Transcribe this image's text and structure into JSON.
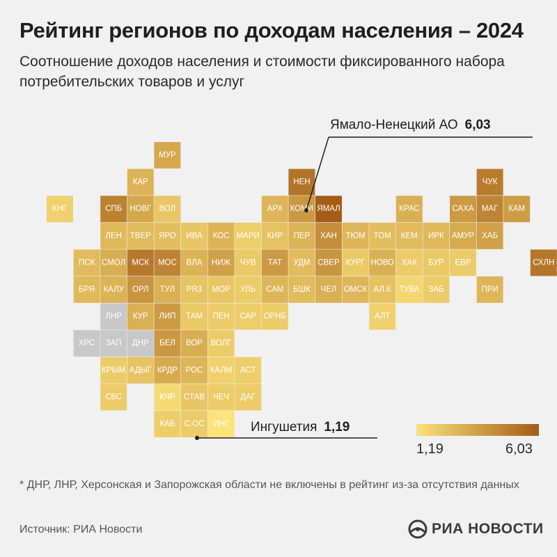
{
  "header": {
    "title": "Рейтинг регионов по доходам населения – 2024",
    "subtitle": "Соотношение доходов населения и стоимости фиксированного набора потребительских товаров и услуг"
  },
  "chart_data": {
    "type": "heatmap",
    "title": "Рейтинг регионов по доходам населения – 2024",
    "subtitle": "Соотношение доходов населения и стоимости фиксированного набора потребительских товаров и услуг",
    "color_scale": {
      "min": 1.19,
      "max": 6.03,
      "min_label": "1,19",
      "max_label": "6,03",
      "min_color": "#fbe27a",
      "max_color": "#a35d16",
      "no_data_color": "#c8c8c8"
    },
    "cells": [
      {
        "label": "МУР",
        "col": 4,
        "row": 0,
        "value": 3.3
      },
      {
        "label": "КАР",
        "col": 3,
        "row": 1,
        "value": 2.9
      },
      {
        "label": "НЕН",
        "col": 9,
        "row": 1,
        "value": 5.2
      },
      {
        "label": "ЧУК",
        "col": 16,
        "row": 1,
        "value": 4.9
      },
      {
        "label": "КНГ",
        "col": 0,
        "row": 2,
        "value": 1.8
      },
      {
        "label": "СПБ",
        "col": 2,
        "row": 2,
        "value": 4.7
      },
      {
        "label": "НОВГ",
        "col": 3,
        "row": 2,
        "value": 3.3
      },
      {
        "label": "ВОЛ",
        "col": 4,
        "row": 2,
        "value": 2.2
      },
      {
        "label": "АРХ",
        "col": 8,
        "row": 2,
        "value": 2.8
      },
      {
        "label": "КОМИ",
        "col": 9,
        "row": 2,
        "value": 3.9
      },
      {
        "label": "ЯМАЛ",
        "col": 10,
        "row": 2,
        "value": 6.03
      },
      {
        "label": "КРАС",
        "col": 13,
        "row": 2,
        "value": 3.0
      },
      {
        "label": "САХА",
        "col": 15,
        "row": 2,
        "value": 3.8
      },
      {
        "label": "МАГ",
        "col": 16,
        "row": 2,
        "value": 4.6
      },
      {
        "label": "КАМ",
        "col": 17,
        "row": 2,
        "value": 3.7
      },
      {
        "label": "ЛЕН",
        "col": 2,
        "row": 3,
        "value": 2.7
      },
      {
        "label": "ТВЕР",
        "col": 3,
        "row": 3,
        "value": 2.6
      },
      {
        "label": "ЯРО",
        "col": 4,
        "row": 3,
        "value": 2.5
      },
      {
        "label": "ИВА",
        "col": 5,
        "row": 3,
        "value": 2.2
      },
      {
        "label": "КОС",
        "col": 6,
        "row": 3,
        "value": 2.9
      },
      {
        "label": "МАРИ",
        "col": 7,
        "row": 3,
        "value": 1.9
      },
      {
        "label": "КИР",
        "col": 8,
        "row": 3,
        "value": 2.4
      },
      {
        "label": "ПЕР",
        "col": 9,
        "row": 3,
        "value": 2.9
      },
      {
        "label": "ХАН",
        "col": 10,
        "row": 3,
        "value": 4.2
      },
      {
        "label": "ТЮМ",
        "col": 11,
        "row": 3,
        "value": 2.8
      },
      {
        "label": "ТОМ",
        "col": 12,
        "row": 3,
        "value": 2.5
      },
      {
        "label": "КЕМ",
        "col": 13,
        "row": 3,
        "value": 2.6
      },
      {
        "label": "ИРК",
        "col": 14,
        "row": 3,
        "value": 2.7
      },
      {
        "label": "АМУР",
        "col": 15,
        "row": 3,
        "value": 3.2
      },
      {
        "label": "ХАБ",
        "col": 16,
        "row": 3,
        "value": 3.6
      },
      {
        "label": "ПСК",
        "col": 1,
        "row": 4,
        "value": 2.6
      },
      {
        "label": "СМОЛ",
        "col": 2,
        "row": 4,
        "value": 3.1
      },
      {
        "label": "МСК",
        "col": 3,
        "row": 4,
        "value": 5.0
      },
      {
        "label": "МОС",
        "col": 4,
        "row": 4,
        "value": 4.6
      },
      {
        "label": "ВЛА",
        "col": 5,
        "row": 4,
        "value": 2.9
      },
      {
        "label": "НИЖ",
        "col": 6,
        "row": 4,
        "value": 3.6
      },
      {
        "label": "ЧУВ",
        "col": 7,
        "row": 4,
        "value": 2.1
      },
      {
        "label": "ТАТ",
        "col": 8,
        "row": 4,
        "value": 3.8
      },
      {
        "label": "УДМ",
        "col": 9,
        "row": 4,
        "value": 2.6
      },
      {
        "label": "СВЕР",
        "col": 10,
        "row": 4,
        "value": 4.0
      },
      {
        "label": "КУРГ",
        "col": 11,
        "row": 4,
        "value": 2.1
      },
      {
        "label": "НОВО",
        "col": 12,
        "row": 4,
        "value": 3.0
      },
      {
        "label": "ХАК",
        "col": 13,
        "row": 4,
        "value": 2.0
      },
      {
        "label": "БУР",
        "col": 14,
        "row": 4,
        "value": 2.1
      },
      {
        "label": "ЕВР",
        "col": 15,
        "row": 4,
        "value": 2.0
      },
      {
        "label": "СХЛН",
        "col": 18,
        "row": 4,
        "value": 5.1
      },
      {
        "label": "БРЯ",
        "col": 1,
        "row": 5,
        "value": 2.7
      },
      {
        "label": "КАЛУ",
        "col": 2,
        "row": 5,
        "value": 2.9
      },
      {
        "label": "ОРЛ",
        "col": 3,
        "row": 5,
        "value": 4.0
      },
      {
        "label": "ТУЛ",
        "col": 4,
        "row": 5,
        "value": 3.0
      },
      {
        "label": "РЯЗ",
        "col": 5,
        "row": 5,
        "value": 2.3
      },
      {
        "label": "МОР",
        "col": 6,
        "row": 5,
        "value": 2.2
      },
      {
        "label": "УЛЬ",
        "col": 7,
        "row": 5,
        "value": 2.0
      },
      {
        "label": "САМ",
        "col": 8,
        "row": 5,
        "value": 2.8
      },
      {
        "label": "БШК",
        "col": 9,
        "row": 5,
        "value": 2.6
      },
      {
        "label": "ЧЕЛ",
        "col": 10,
        "row": 5,
        "value": 3.0
      },
      {
        "label": "ОМСК",
        "col": 11,
        "row": 5,
        "value": 2.8
      },
      {
        "label": "АЛ.К",
        "col": 12,
        "row": 5,
        "value": 2.4
      },
      {
        "label": "ТУВА",
        "col": 13,
        "row": 5,
        "value": 1.6
      },
      {
        "label": "ЗАБ",
        "col": 14,
        "row": 5,
        "value": 2.0
      },
      {
        "label": "ПРИ",
        "col": 16,
        "row": 5,
        "value": 2.8
      },
      {
        "label": "ЛНР",
        "col": 2,
        "row": 6,
        "value": null
      },
      {
        "label": "КУР",
        "col": 3,
        "row": 6,
        "value": 3.0
      },
      {
        "label": "ЛИП",
        "col": 4,
        "row": 6,
        "value": 3.8
      },
      {
        "label": "ТАМ",
        "col": 5,
        "row": 6,
        "value": 2.1
      },
      {
        "label": "ПЕН",
        "col": 6,
        "row": 6,
        "value": 2.0
      },
      {
        "label": "САР",
        "col": 7,
        "row": 6,
        "value": 1.9
      },
      {
        "label": "ОРНБ",
        "col": 8,
        "row": 6,
        "value": 2.0
      },
      {
        "label": "АЛТ",
        "col": 12,
        "row": 6,
        "value": 1.8
      },
      {
        "label": "ХРС",
        "col": 1,
        "row": 7,
        "value": null
      },
      {
        "label": "ЗАП",
        "col": 2,
        "row": 7,
        "value": null
      },
      {
        "label": "ДНР",
        "col": 3,
        "row": 7,
        "value": null
      },
      {
        "label": "БЕЛ",
        "col": 4,
        "row": 7,
        "value": 3.9
      },
      {
        "label": "ВОР",
        "col": 5,
        "row": 7,
        "value": 3.1
      },
      {
        "label": "ВОЛГ",
        "col": 6,
        "row": 7,
        "value": 2.0
      },
      {
        "label": "КРЫМ",
        "col": 2,
        "row": 8,
        "value": 2.0
      },
      {
        "label": "АДЫГ",
        "col": 3,
        "row": 8,
        "value": 2.3
      },
      {
        "label": "КРДР",
        "col": 4,
        "row": 8,
        "value": 3.2
      },
      {
        "label": "РОС",
        "col": 5,
        "row": 8,
        "value": 2.8
      },
      {
        "label": "КАЛМ",
        "col": 6,
        "row": 8,
        "value": 1.8
      },
      {
        "label": "АСТ",
        "col": 7,
        "row": 8,
        "value": 1.9
      },
      {
        "label": "СВС",
        "col": 2,
        "row": 9,
        "value": 2.0
      },
      {
        "label": "КЧР",
        "col": 4,
        "row": 9,
        "value": 1.5
      },
      {
        "label": "СТАВ",
        "col": 5,
        "row": 9,
        "value": 2.2
      },
      {
        "label": "ЧЕЧ",
        "col": 6,
        "row": 9,
        "value": 2.0
      },
      {
        "label": "ДАГ",
        "col": 7,
        "row": 9,
        "value": 2.0
      },
      {
        "label": "КАБ",
        "col": 4,
        "row": 10,
        "value": 1.9
      },
      {
        "label": "С.ОС",
        "col": 5,
        "row": 10,
        "value": 2.0
      },
      {
        "label": "ИНГ",
        "col": 6,
        "row": 10,
        "value": 1.19
      }
    ],
    "annotations": [
      {
        "region": "ЯМАЛ",
        "text": "Ямало-Ненецкий АО",
        "value": "6,03"
      },
      {
        "region": "ИНГ",
        "text": "Ингушетия",
        "value": "1,19"
      }
    ]
  },
  "callouts": {
    "yamal": {
      "name": "Ямало-Ненецкий АО",
      "value": "6,03"
    },
    "ingush": {
      "name": "Ингушетия",
      "value": "1,19"
    }
  },
  "legend": {
    "min_label": "1,19",
    "max_label": "6,03"
  },
  "footnote": "* ДНР, ЛНР, Херсонская и Запорожская области не включены в рейтинг из-за отсутствия данных",
  "source": "Источник: РИА Новости",
  "logo": {
    "text": "РИА НОВОСТИ",
    "icon": "ria-logo-icon"
  }
}
